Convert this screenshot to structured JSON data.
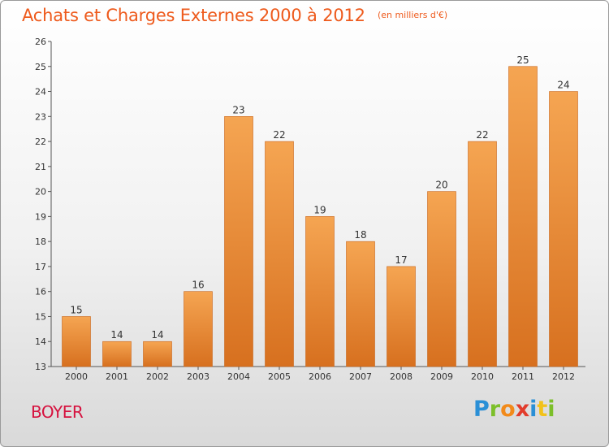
{
  "header": {
    "title": "Achats et Charges Externes 2000 à 2012",
    "subtitle": "(en milliers d'€)"
  },
  "footer": {
    "commune": "BOYER",
    "brand_letters": [
      "P",
      "r",
      "o",
      "x",
      "i",
      "t",
      "i"
    ],
    "brand_colors": [
      "#2a8fd6",
      "#7cbf2a",
      "#f28a1a",
      "#e23c2c",
      "#2a8fd6",
      "#f2c21a",
      "#7cbf2a"
    ]
  },
  "chart_data": {
    "type": "bar",
    "title": "Achats et Charges Externes 2000 à 2012",
    "subtitle": "(en milliers d'€)",
    "categories": [
      "2000",
      "2001",
      "2002",
      "2003",
      "2004",
      "2005",
      "2006",
      "2007",
      "2008",
      "2009",
      "2010",
      "2011",
      "2012"
    ],
    "values": [
      15,
      14,
      14,
      16,
      23,
      22,
      19,
      18,
      17,
      20,
      22,
      25,
      24
    ],
    "ylim": [
      13,
      26
    ],
    "yticks": [
      13,
      14,
      15,
      16,
      17,
      18,
      19,
      20,
      21,
      22,
      23,
      24,
      25,
      26
    ],
    "grid": false,
    "legend": "none",
    "bar_color_top": "#f5a552",
    "bar_color_bottom": "#d7701f",
    "bar_edge_color": "#c9651a"
  }
}
